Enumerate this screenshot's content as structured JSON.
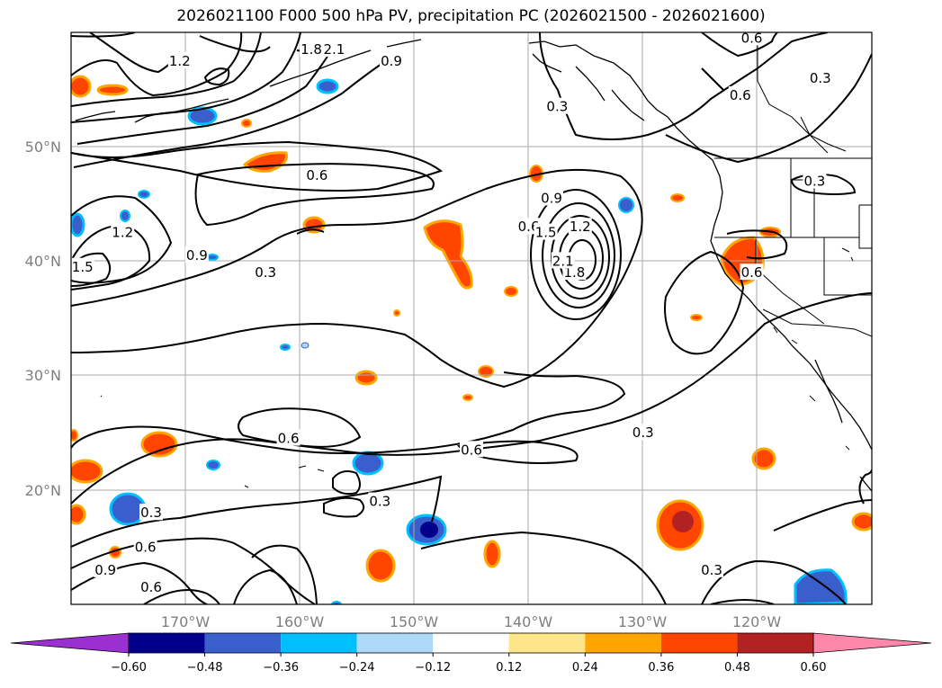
{
  "title": "2026021100 F000 500 hPa PV, precipitation PC (2026021500 - 2026021600)",
  "lat_labels": [
    "50°N",
    "40°N",
    "30°N",
    "20°N"
  ],
  "lon_labels": [
    "170°W",
    "160°W",
    "150°W",
    "140°W",
    "130°W",
    "120°W"
  ],
  "colorbar": {
    "ticks": [
      "−0.60",
      "−0.48",
      "−0.36",
      "−0.24",
      "−0.12",
      "0.12",
      "0.24",
      "0.36",
      "0.48",
      "0.60"
    ],
    "colors": [
      "#9b30d0",
      "#00008b",
      "#3a5fcd",
      "#00bfff",
      "#add8f7",
      "#ffffff",
      "#fde68a",
      "#ffa500",
      "#ff4500",
      "#b22222",
      "#ff88aa"
    ]
  },
  "contour_labels": [
    {
      "text": "0.3",
      "lon": -173,
      "lat": 18
    },
    {
      "text": "0.3",
      "lon": -153,
      "lat": 19
    },
    {
      "text": "0.3",
      "lon": -163,
      "lat": 39
    },
    {
      "text": "0.3",
      "lon": -130,
      "lat": 25
    },
    {
      "text": "0.3",
      "lon": -137.5,
      "lat": 53.5
    },
    {
      "text": "0.3",
      "lon": -124,
      "lat": 13
    },
    {
      "text": "0.3",
      "lon": -114.5,
      "lat": 56
    },
    {
      "text": "0.3",
      "lon": -115,
      "lat": 47
    },
    {
      "text": "0.6",
      "lon": -161,
      "lat": 24.5
    },
    {
      "text": "0.6",
      "lon": -145,
      "lat": 23.5
    },
    {
      "text": "0.6",
      "lon": -158.5,
      "lat": 47.5
    },
    {
      "text": "0.6",
      "lon": -140,
      "lat": 43
    },
    {
      "text": "0.6",
      "lon": -121.5,
      "lat": 54.5
    },
    {
      "text": "0.6",
      "lon": -120.5,
      "lat": 59.5
    },
    {
      "text": "0.6",
      "lon": -173,
      "lat": 11.5
    },
    {
      "text": "0.6",
      "lon": -173.5,
      "lat": 15
    },
    {
      "text": "0.6",
      "lon": -120.5,
      "lat": 39
    },
    {
      "text": "0.9",
      "lon": -177,
      "lat": 13
    },
    {
      "text": "0.9",
      "lon": -169,
      "lat": 40.5
    },
    {
      "text": "0.9",
      "lon": -152,
      "lat": 57.5
    },
    {
      "text": "0.9",
      "lon": -138,
      "lat": 45.5
    },
    {
      "text": "1.2",
      "lon": -175.5,
      "lat": 42.5
    },
    {
      "text": "1.2",
      "lon": -170.5,
      "lat": 57.5
    },
    {
      "text": "1.2",
      "lon": -135.5,
      "lat": 43
    },
    {
      "text": "1.5",
      "lon": -179,
      "lat": 39.5
    },
    {
      "text": "1.5",
      "lon": -138.5,
      "lat": 42.5
    },
    {
      "text": "1.8",
      "lon": -159,
      "lat": 58.5
    },
    {
      "text": "1.8",
      "lon": -136,
      "lat": 39
    },
    {
      "text": "2.1",
      "lon": -157,
      "lat": 58.5
    },
    {
      "text": "2.1",
      "lon": -137,
      "lat": 40
    }
  ]
}
